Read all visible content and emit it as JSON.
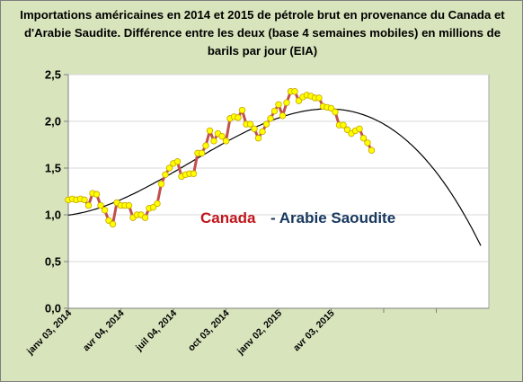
{
  "colors": {
    "background": "#d8e4bc",
    "plot_area": "#ffffff",
    "line": "#c0504d",
    "marker_fill": "#ffff00",
    "marker_stroke": "#c9a600",
    "trend": "#000000",
    "gridline": "#d9d9d9",
    "canada_label": "#c0161c",
    "arabie_label": "#17375e"
  },
  "chart_data": {
    "type": "line",
    "title": "Importations américaines en 2014 et 2015 de pétrole brut en provenance du Canada et d'Arabie Saudite. Différence entre les deux (base 4 semaines mobiles) en millions de barils par jour (EIA)",
    "xlabel": "",
    "ylabel": "",
    "ylim": [
      0,
      2.5
    ],
    "yticks": [
      "0,0",
      "0,5",
      "1,0",
      "1,5",
      "2,0",
      "2,5"
    ],
    "ytick_values": [
      0,
      0.5,
      1.0,
      1.5,
      2.0,
      2.5
    ],
    "xlim": [
      "2014-01-03",
      "2016-01-01"
    ],
    "xticks": [
      {
        "date": "2014-01-03",
        "label": "janv 03, 2014"
      },
      {
        "date": "2014-04-04",
        "label": "avr 04, 2014"
      },
      {
        "date": "2014-07-04",
        "label": "juil 04, 2014"
      },
      {
        "date": "2014-10-03",
        "label": "oct 03, 2014"
      },
      {
        "date": "2015-01-02",
        "label": "janv 02, 2015"
      },
      {
        "date": "2015-04-03",
        "label": "avr 03, 2015"
      },
      {
        "date": "2015-07-03",
        "label": ""
      },
      {
        "date": "2015-10-02",
        "label": ""
      }
    ],
    "grid": true,
    "annotations": {
      "canada": "Canada",
      "arabie": "- Arabie  Saoudite"
    },
    "series": [
      {
        "name": "",
        "x": [
          "2014-01-03",
          "2014-01-10",
          "2014-01-17",
          "2014-01-24",
          "2014-01-31",
          "2014-02-07",
          "2014-02-14",
          "2014-02-21",
          "2014-02-28",
          "2014-03-07",
          "2014-03-14",
          "2014-03-21",
          "2014-03-28",
          "2014-04-04",
          "2014-04-11",
          "2014-04-18",
          "2014-04-25",
          "2014-05-02",
          "2014-05-09",
          "2014-05-16",
          "2014-05-23",
          "2014-05-30",
          "2014-06-06",
          "2014-06-13",
          "2014-06-20",
          "2014-06-27",
          "2014-07-04",
          "2014-07-11",
          "2014-07-18",
          "2014-07-25",
          "2014-08-01",
          "2014-08-08",
          "2014-08-15",
          "2014-08-22",
          "2014-08-29",
          "2014-09-05",
          "2014-09-12",
          "2014-09-19",
          "2014-09-26",
          "2014-10-03",
          "2014-10-10",
          "2014-10-17",
          "2014-10-24",
          "2014-10-31",
          "2014-11-07",
          "2014-11-14",
          "2014-11-21",
          "2014-11-28",
          "2014-12-05",
          "2014-12-12",
          "2014-12-19",
          "2014-12-26",
          "2015-01-02",
          "2015-01-09",
          "2015-01-16",
          "2015-01-23",
          "2015-01-30",
          "2015-02-06",
          "2015-02-13",
          "2015-02-20",
          "2015-02-27",
          "2015-03-06",
          "2015-03-13",
          "2015-03-20",
          "2015-03-27",
          "2015-04-03",
          "2015-04-10",
          "2015-04-17",
          "2015-04-24",
          "2015-05-01",
          "2015-05-08",
          "2015-05-15",
          "2015-05-22",
          "2015-05-29",
          "2015-06-05",
          "2015-06-12"
        ],
        "values": [
          1.16,
          1.17,
          1.16,
          1.17,
          1.16,
          1.1,
          1.23,
          1.22,
          1.1,
          1.05,
          0.94,
          0.9,
          1.13,
          1.1,
          1.1,
          1.1,
          0.97,
          1.0,
          1.0,
          0.97,
          1.07,
          1.08,
          1.12,
          1.33,
          1.43,
          1.5,
          1.55,
          1.57,
          1.41,
          1.43,
          1.44,
          1.44,
          1.66,
          1.66,
          1.74,
          1.9,
          1.79,
          1.87,
          1.84,
          1.79,
          2.03,
          2.05,
          2.04,
          2.12,
          1.97,
          1.97,
          1.92,
          1.82,
          1.89,
          1.97,
          2.03,
          2.11,
          2.18,
          2.06,
          2.2,
          2.32,
          2.32,
          2.22,
          2.26,
          2.28,
          2.27,
          2.25,
          2.25,
          2.16,
          2.15,
          2.14,
          2.1,
          1.96,
          1.96,
          1.91,
          1.87,
          1.9,
          1.92,
          1.82,
          1.77,
          1.69
        ]
      }
    ],
    "trendline": {
      "type": "polynomial",
      "x_range": [
        "2014-01-03",
        "2015-12-18"
      ],
      "end_value": 0.67
    }
  }
}
